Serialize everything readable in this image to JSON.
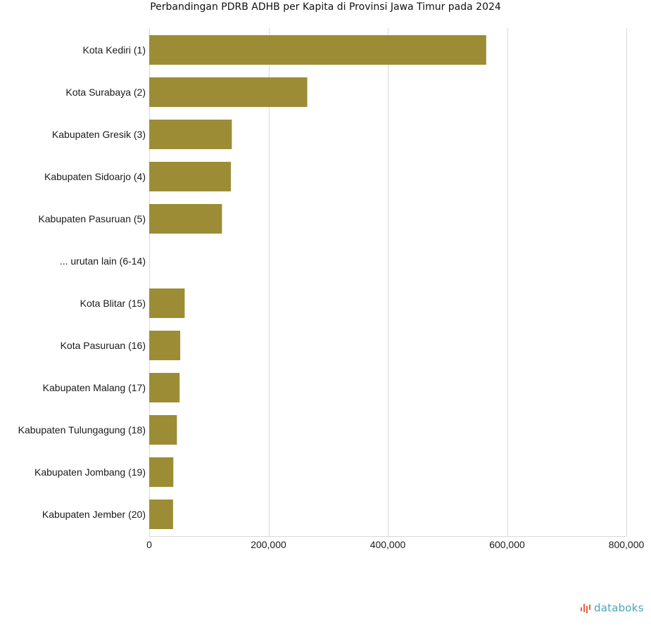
{
  "chart_data": {
    "type": "bar",
    "orientation": "horizontal",
    "title": "Perbandingan PDRB ADHB per Kapita di Provinsi Jawa Timur pada 2024",
    "categories": [
      "Kota Kediri (1)",
      "Kota Surabaya (2)",
      "Kabupaten Gresik (3)",
      "Kabupaten Sidoarjo (4)",
      "Kabupaten Pasuruan (5)",
      "... urutan lain (6-14)",
      "Kota Blitar (15)",
      "Kota Pasuruan (16)",
      "Kabupaten Malang (17)",
      "Kabupaten Tulungagung (18)",
      "Kabupaten Jombang (19)",
      "Kabupaten Jember (20)"
    ],
    "values": [
      565000,
      265000,
      138500,
      137000,
      122000,
      null,
      59500,
      52000,
      51000,
      46500,
      40500,
      40000
    ],
    "xlim": [
      0,
      800000
    ],
    "xticks": [
      "0",
      "200,000",
      "400,000",
      "600,000",
      "800,000"
    ],
    "xtick_values": [
      0,
      200000,
      400000,
      600000,
      800000
    ],
    "grid": "vertical",
    "bar_color": "#9c8c36",
    "grid_color": "#d9d9d9"
  },
  "brand": {
    "name": "databoks",
    "icon": "databoks-logo-icon",
    "color": "#4aa6b8",
    "icon_color": "#e8613c"
  }
}
